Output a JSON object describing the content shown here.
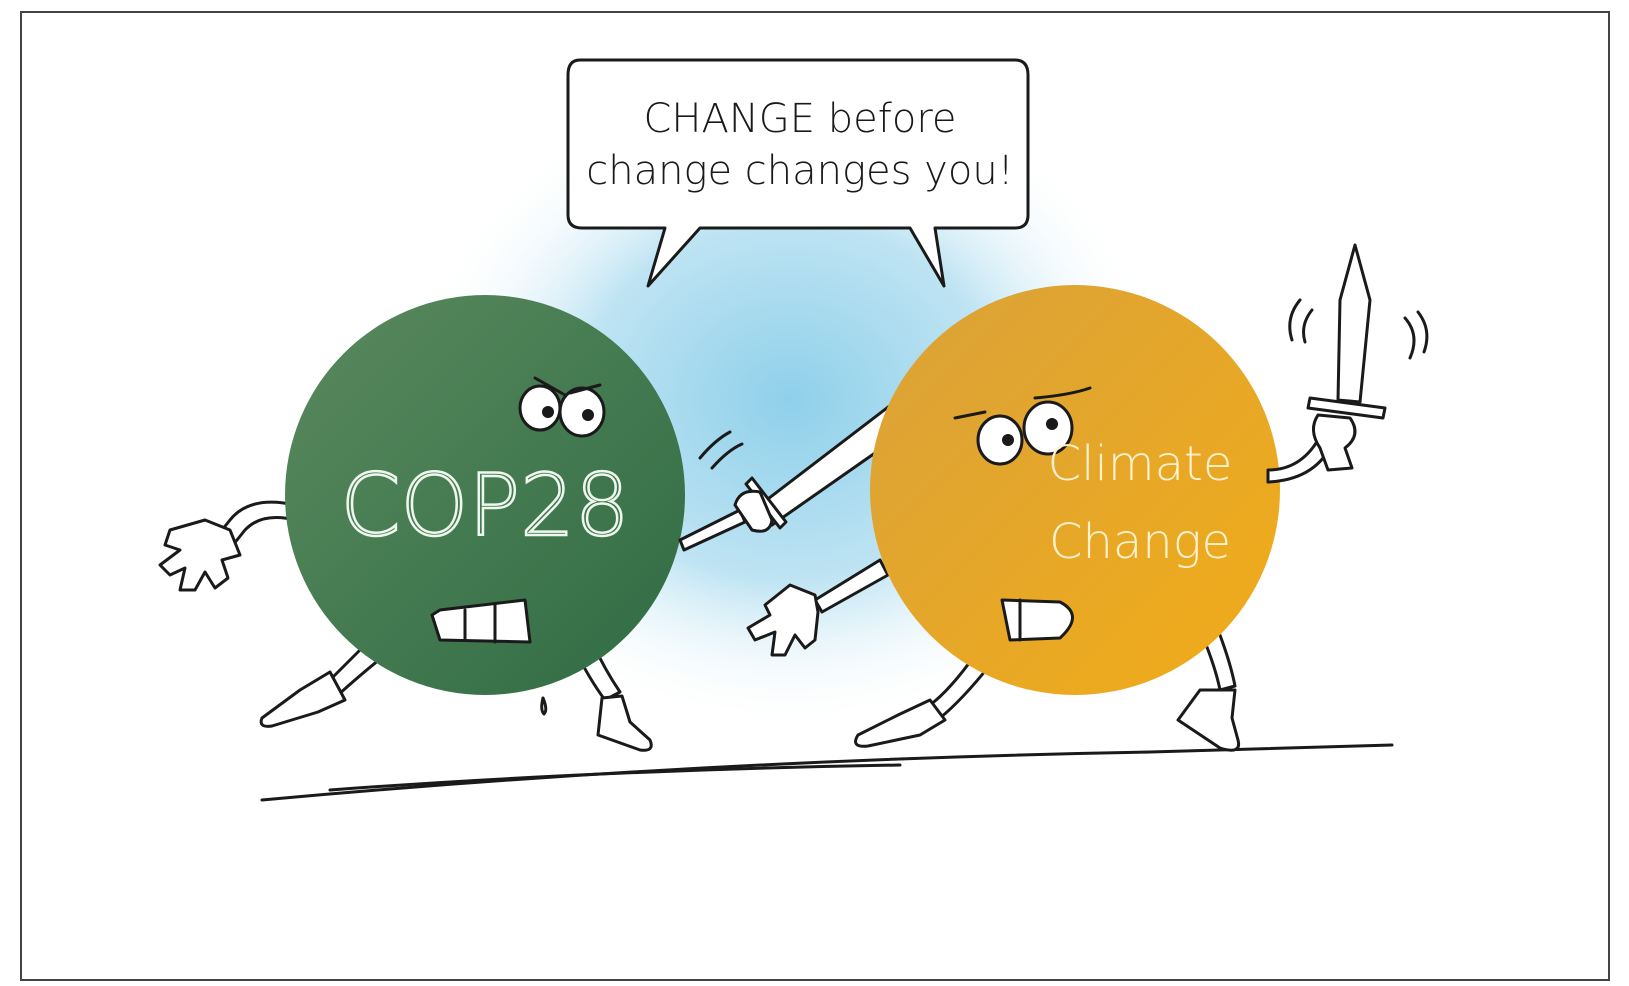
{
  "speech_bubble": {
    "lines": [
      "CHANGE before",
      "change changes you!"
    ]
  },
  "characters": [
    {
      "label_lines": [
        "COP28"
      ]
    },
    {
      "label_lines": [
        "Climate",
        "Change"
      ]
    }
  ]
}
